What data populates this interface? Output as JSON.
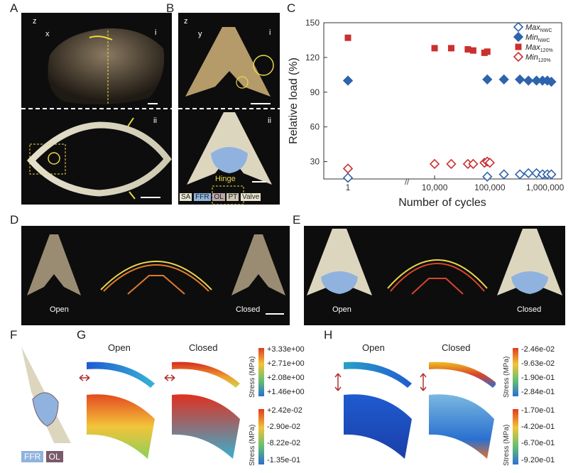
{
  "panels": {
    "A": {
      "label": "A",
      "axis_z": "z",
      "axis_h": "x",
      "sub_i": "i",
      "sub_ii": "ii"
    },
    "B": {
      "label": "B",
      "axis_z": "z",
      "axis_h": "y",
      "sub_i": "i",
      "sub_ii": "ii",
      "hinge": "Hinge",
      "bar_labels": [
        "SA",
        "FFR",
        "OL",
        "PT",
        "Valve"
      ]
    },
    "C": {
      "label": "C"
    },
    "D": {
      "label": "D",
      "open": "Open",
      "closed": "Closed"
    },
    "E": {
      "label": "E",
      "open": "Open",
      "closed": "Closed"
    },
    "F": {
      "label": "F",
      "legend": [
        "FFR",
        "OL"
      ]
    },
    "G": {
      "label": "G",
      "open": "Open",
      "closed": "Closed",
      "stress_label": "Stress (MPa)",
      "cb_top": [
        "+3.33e+00",
        "+2.71e+00",
        "+2.08e+00",
        "+1.46e+00"
      ],
      "cb_bottom": [
        "+2.42e-02",
        "-2.90e-02",
        "-8.22e-02",
        "-1.35e-01"
      ]
    },
    "H": {
      "label": "H",
      "open": "Open",
      "closed": "Closed",
      "stress_label": "Stress (MPa)",
      "cb_top": [
        "-2.46e-02",
        "-9.63e-02",
        "-1.90e-01",
        "-2.84e-01"
      ],
      "cb_bottom": [
        "-1.70e-01",
        "-4.20e-01",
        "-6.70e-01",
        "-9.20e-01"
      ]
    }
  },
  "colors": {
    "max_nwc": "#2e63ad",
    "min_nwc": "#2e63ad",
    "max_120": "#cc2f2f",
    "min_120": "#cc2f2f"
  },
  "chart_data": {
    "type": "scatter",
    "xlabel": "Number of cycles",
    "ylabel": "Relative load (%)",
    "x_scale": "log (broken axis between 1 and 10,000)",
    "x_ticks": [
      "1",
      "10,000",
      "100,000",
      "1,000,000"
    ],
    "y_ticks": [
      30,
      60,
      90,
      120,
      150
    ],
    "ylim": [
      15,
      150
    ],
    "legend_position": "top-right",
    "series": [
      {
        "name": "Max_NWC",
        "label_main": "Max",
        "label_sub": "NWC",
        "marker": "open-diamond",
        "color": "#2e63ad",
        "x": [
          1,
          90000,
          180000,
          350000,
          500000,
          700000,
          900000,
          1100000,
          1300000
        ],
        "y": [
          16,
          17,
          19,
          19,
          20,
          20,
          19,
          19,
          19
        ]
      },
      {
        "name": "Min_NWC",
        "label_main": "Min",
        "label_sub": "NWC",
        "marker": "filled-diamond",
        "color": "#2e63ad",
        "x": [
          1,
          90000,
          180000,
          350000,
          500000,
          700000,
          900000,
          1100000,
          1300000
        ],
        "y": [
          100,
          101,
          101,
          101,
          100,
          100,
          100,
          100,
          99
        ]
      },
      {
        "name": "Max_120%",
        "label_main": "Max",
        "label_sub": "120%",
        "marker": "filled-square",
        "color": "#cc2f2f",
        "x": [
          1,
          10000,
          20000,
          40000,
          50000,
          80000,
          90000
        ],
        "y": [
          137,
          128,
          128,
          127,
          126,
          124,
          125
        ]
      },
      {
        "name": "Min_120%",
        "label_main": "Min",
        "label_sub": "120%",
        "marker": "open-diamond",
        "color": "#cc2f2f",
        "x": [
          1,
          10000,
          20000,
          40000,
          50000,
          80000,
          90000,
          100000
        ],
        "y": [
          24,
          28,
          28,
          28,
          28,
          29,
          30,
          29
        ]
      }
    ]
  }
}
